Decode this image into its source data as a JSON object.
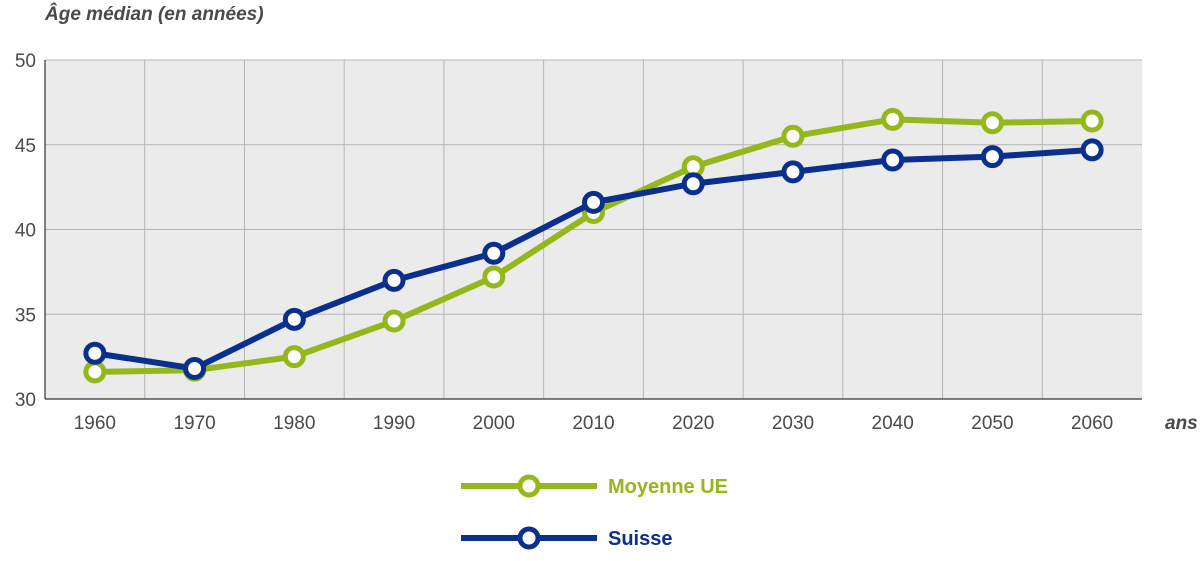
{
  "chart_data": {
    "type": "line",
    "ylabel": "Âge médian (en années)",
    "xlabel": "ans",
    "x": [
      1960,
      1970,
      1980,
      1990,
      2000,
      2010,
      2020,
      2030,
      2040,
      2050,
      2060
    ],
    "xlim": [
      1955,
      2065
    ],
    "ylim": [
      30,
      50
    ],
    "yticks": [
      30,
      35,
      40,
      45,
      50
    ],
    "grid": true,
    "legend_position": "bottom-center",
    "series": [
      {
        "name": "Moyenne UE",
        "color": "#94b71b",
        "values": [
          31.6,
          31.7,
          32.5,
          34.6,
          37.2,
          41.0,
          43.7,
          45.5,
          46.5,
          46.3,
          46.4
        ]
      },
      {
        "name": "Suisse",
        "color": "#0a2f8c",
        "values": [
          32.7,
          31.8,
          34.7,
          37.0,
          38.6,
          41.6,
          42.7,
          43.4,
          44.1,
          44.3,
          44.7
        ]
      }
    ]
  }
}
